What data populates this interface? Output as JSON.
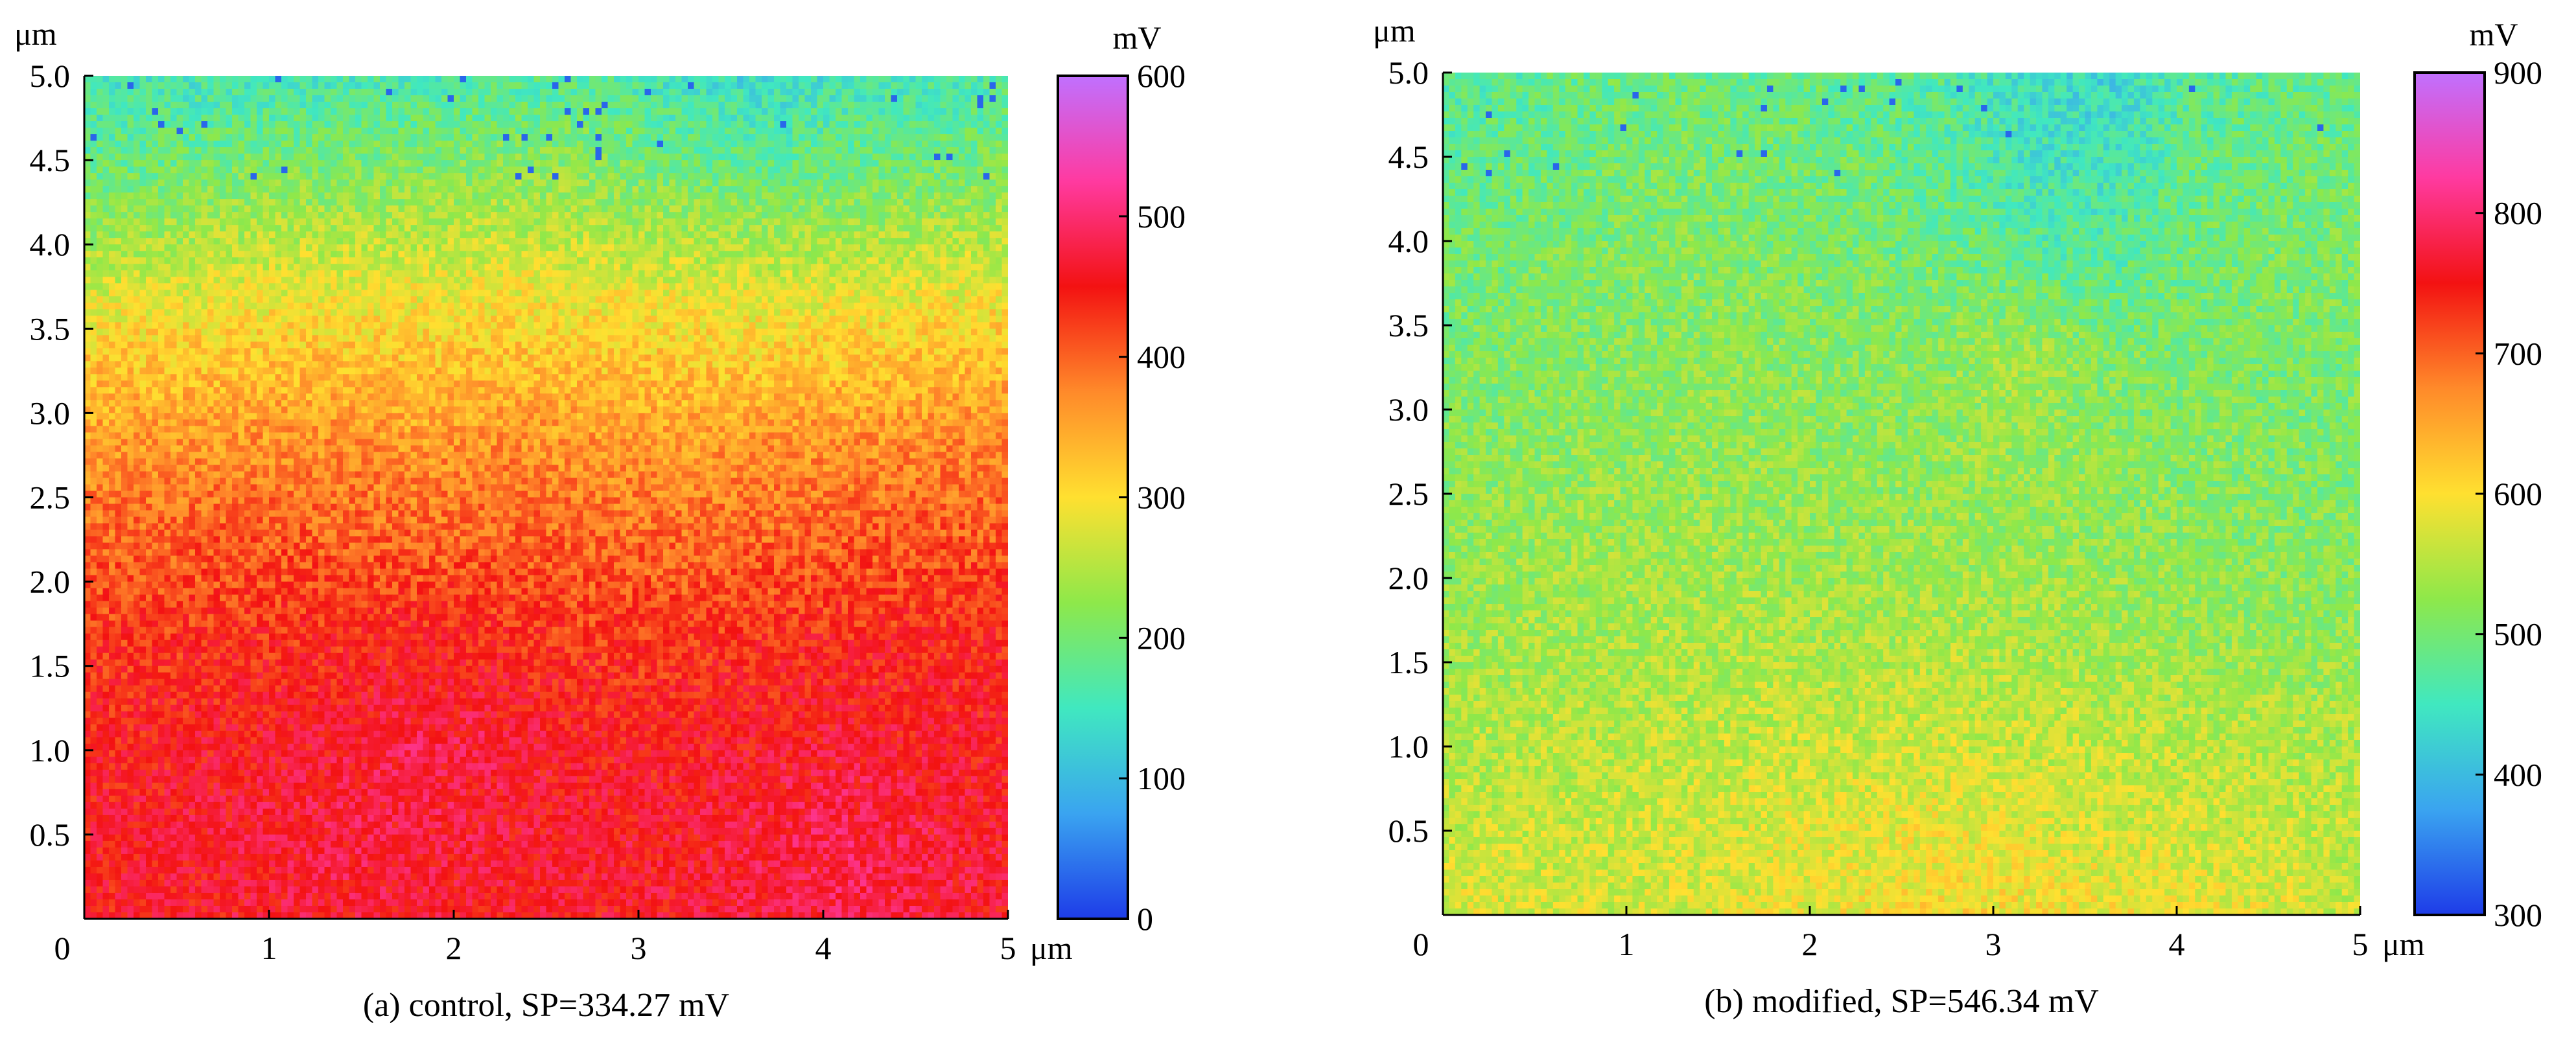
{
  "chart_data": [
    {
      "type": "heatmap",
      "caption": "(a) control, SP=334.27 mV",
      "x_unit": "μm",
      "y_unit": "μm",
      "xlim": [
        0,
        5
      ],
      "ylim": [
        0,
        5
      ],
      "x_ticks": [
        "0",
        "1",
        "2",
        "3",
        "4",
        "5"
      ],
      "y_ticks": [
        "0.5",
        "1.0",
        "1.5",
        "2.0",
        "2.5",
        "3.0",
        "3.5",
        "4.0",
        "4.5",
        "5.0"
      ],
      "colorbar": {
        "unit": "mV",
        "range": [
          0,
          600
        ],
        "ticks": [
          "0",
          "100",
          "200",
          "300",
          "400",
          "500",
          "600"
        ],
        "colors": [
          "#1e3ce8",
          "#3aa4f0",
          "#40e8c0",
          "#8ee84a",
          "#ffe030",
          "#ff8a2a",
          "#f31212",
          "#ff3aa0",
          "#c070ff"
        ]
      },
      "surface_potential_rows": [
        [
          150,
          150,
          155,
          160,
          160,
          170,
          175,
          150,
          130,
          150,
          160,
          165
        ],
        [
          190,
          200,
          210,
          210,
          215,
          220,
          220,
          200,
          190,
          195,
          200,
          210
        ],
        [
          250,
          260,
          265,
          270,
          270,
          275,
          270,
          265,
          260,
          260,
          265,
          270
        ],
        [
          320,
          320,
          325,
          325,
          320,
          325,
          320,
          320,
          315,
          320,
          325,
          330
        ],
        [
          360,
          365,
          370,
          370,
          365,
          370,
          365,
          360,
          365,
          370,
          375,
          380
        ],
        [
          400,
          405,
          410,
          405,
          400,
          405,
          400,
          395,
          400,
          405,
          410,
          410
        ],
        [
          430,
          430,
          435,
          440,
          445,
          440,
          430,
          430,
          435,
          440,
          440,
          440
        ],
        [
          445,
          450,
          455,
          460,
          475,
          465,
          450,
          450,
          455,
          460,
          455,
          450
        ],
        [
          455,
          460,
          465,
          470,
          470,
          465,
          460,
          460,
          470,
          480,
          470,
          460
        ],
        [
          450,
          455,
          460,
          465,
          460,
          460,
          455,
          460,
          470,
          480,
          475,
          460
        ]
      ]
    },
    {
      "type": "heatmap",
      "caption": "(b) modified, SP=546.34 mV",
      "x_unit": "μm",
      "y_unit": "μm",
      "xlim": [
        0,
        5
      ],
      "ylim": [
        0,
        5
      ],
      "x_ticks": [
        "0",
        "1",
        "2",
        "3",
        "4",
        "5"
      ],
      "y_ticks": [
        "0.5",
        "1.0",
        "1.5",
        "2.0",
        "2.5",
        "3.0",
        "3.5",
        "4.0",
        "4.5",
        "5.0"
      ],
      "colorbar": {
        "unit": "mV",
        "range": [
          300,
          900
        ],
        "ticks": [
          "300",
          "400",
          "500",
          "600",
          "700",
          "800",
          "900"
        ],
        "colors": [
          "#1e3ce8",
          "#3aa4f0",
          "#40e8c0",
          "#8ee84a",
          "#ffe030",
          "#ff8a2a",
          "#f31212",
          "#ff3aa0",
          "#c070ff"
        ]
      },
      "surface_potential_rows": [
        [
          470,
          480,
          490,
          490,
          490,
          480,
          470,
          440,
          430,
          470,
          480,
          485
        ],
        [
          485,
          490,
          500,
          505,
          500,
          495,
          480,
          455,
          450,
          485,
          495,
          500
        ],
        [
          500,
          505,
          510,
          515,
          510,
          505,
          500,
          480,
          475,
          500,
          505,
          510
        ],
        [
          505,
          510,
          515,
          520,
          520,
          515,
          520,
          540,
          510,
          505,
          505,
          505
        ],
        [
          515,
          520,
          525,
          525,
          525,
          520,
          525,
          530,
          520,
          515,
          510,
          510
        ],
        [
          525,
          530,
          535,
          535,
          530,
          530,
          530,
          530,
          525,
          520,
          515,
          515
        ],
        [
          535,
          540,
          540,
          545,
          545,
          540,
          545,
          540,
          535,
          530,
          525,
          525
        ],
        [
          545,
          550,
          550,
          555,
          560,
          560,
          565,
          560,
          555,
          550,
          545,
          545
        ],
        [
          560,
          560,
          565,
          570,
          575,
          580,
          585,
          575,
          570,
          565,
          560,
          555
        ],
        [
          580,
          575,
          570,
          575,
          580,
          590,
          600,
          595,
          590,
          585,
          580,
          560
        ]
      ]
    }
  ]
}
